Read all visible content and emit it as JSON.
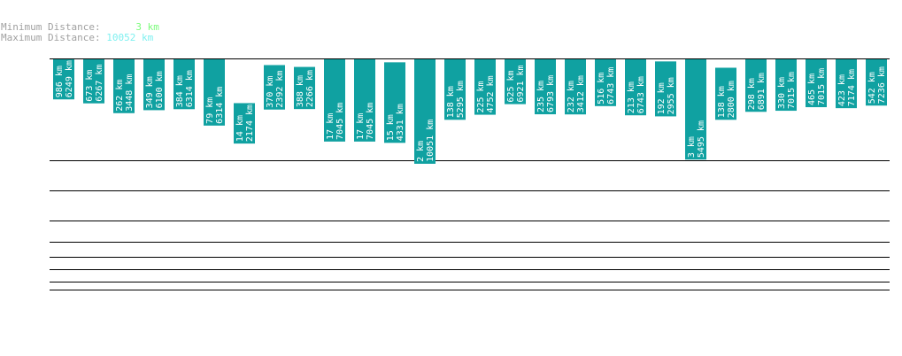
{
  "header": {
    "min_label": "Minimum Distance:",
    "min_value": "3 km",
    "max_label": "Maximum Distance:",
    "max_value": "10052 km",
    "min_color": "#7cfc7c",
    "max_color": "#7ff0f0"
  },
  "chart_data": {
    "type": "bar",
    "unit": "km",
    "bar_color": "#10a1a1",
    "grid": true,
    "ylim": [
      0,
      10052
    ],
    "bars": [
      {
        "low": 986,
        "high": 6249
      },
      {
        "low": 673,
        "high": 6267
      },
      {
        "low": 262,
        "high": 3448
      },
      {
        "low": 349,
        "high": 6100
      },
      {
        "low": 384,
        "high": 6314
      },
      {
        "low": 79,
        "high": 6314
      },
      {
        "low": 14,
        "high": 2174
      },
      {
        "low": 370,
        "high": 2392
      },
      {
        "low": 388,
        "high": 2266
      },
      {
        "low": 17,
        "high": 7045
      },
      {
        "low": 17,
        "high": 7045
      },
      {
        "low": 15,
        "high": 4331
      },
      {
        "low": 2,
        "high": 10051
      },
      {
        "low": 138,
        "high": 5295
      },
      {
        "low": 225,
        "high": 4752
      },
      {
        "low": 625,
        "high": 6921
      },
      {
        "low": 235,
        "high": 6793
      },
      {
        "low": 232,
        "high": 3412
      },
      {
        "low": 516,
        "high": 6743
      },
      {
        "low": 213,
        "high": 6743
      },
      {
        "low": 192,
        "high": 2955
      },
      {
        "low": 3,
        "high": 5495
      },
      {
        "low": 138,
        "high": 2800
      },
      {
        "low": 298,
        "high": 6891
      },
      {
        "low": 330,
        "high": 7015
      },
      {
        "low": 465,
        "high": 7015
      },
      {
        "low": 423,
        "high": 7174
      },
      {
        "low": 542,
        "high": 7236
      }
    ]
  }
}
